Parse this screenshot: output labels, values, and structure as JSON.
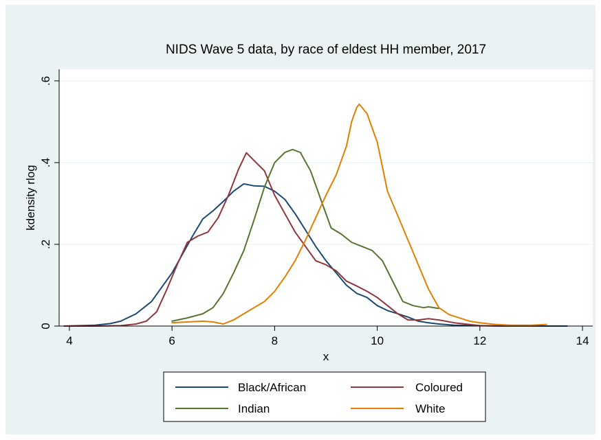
{
  "chart_data": {
    "type": "line",
    "title": "NIDS Wave 5 data, by race of eldest HH member, 2017",
    "xlabel": "x",
    "ylabel": "kdensity rlog",
    "xlim": [
      3.8,
      14.2
    ],
    "ylim": [
      0,
      0.6
    ],
    "xticks": [
      4,
      6,
      8,
      10,
      12,
      14
    ],
    "xtick_labels": [
      "4",
      "6",
      "8",
      "10",
      "12",
      "14"
    ],
    "yticks": [
      0,
      0.2,
      0.4,
      0.6
    ],
    "ytick_labels": [
      "0",
      ".2",
      ".4",
      ".6"
    ],
    "grid": true,
    "legend_position": "bottom",
    "series": [
      {
        "name": "Black/African",
        "color": "#1a476f",
        "x": [
          3.9,
          4.5,
          4.8,
          5.0,
          5.3,
          5.6,
          5.8,
          6.0,
          6.2,
          6.4,
          6.6,
          6.8,
          7.0,
          7.2,
          7.4,
          7.6,
          7.8,
          8.0,
          8.2,
          8.4,
          8.6,
          8.8,
          9.0,
          9.2,
          9.4,
          9.6,
          9.8,
          10.0,
          10.2,
          10.4,
          10.6,
          10.8,
          11.0,
          11.2,
          11.5,
          12.0,
          12.5,
          13.0,
          13.7
        ],
        "y": [
          0.0,
          0.002,
          0.006,
          0.012,
          0.03,
          0.06,
          0.095,
          0.13,
          0.175,
          0.22,
          0.262,
          0.282,
          0.305,
          0.33,
          0.348,
          0.343,
          0.342,
          0.33,
          0.31,
          0.275,
          0.235,
          0.195,
          0.16,
          0.13,
          0.1,
          0.08,
          0.07,
          0.05,
          0.038,
          0.03,
          0.022,
          0.012,
          0.008,
          0.005,
          0.002,
          0.001,
          0.0,
          0.0,
          0.0
        ]
      },
      {
        "name": "Coloured",
        "color": "#90353b",
        "x": [
          3.9,
          4.5,
          5.0,
          5.3,
          5.5,
          5.7,
          5.9,
          6.1,
          6.3,
          6.5,
          6.7,
          6.9,
          7.1,
          7.3,
          7.45,
          7.6,
          7.8,
          8.0,
          8.2,
          8.4,
          8.6,
          8.8,
          9.0,
          9.2,
          9.4,
          9.6,
          9.8,
          10.0,
          10.2,
          10.4,
          10.6,
          10.8,
          11.0,
          11.2,
          11.5,
          12.0,
          12.5,
          13.0
        ],
        "y": [
          0.0,
          0.0,
          0.001,
          0.005,
          0.012,
          0.035,
          0.09,
          0.15,
          0.205,
          0.22,
          0.23,
          0.265,
          0.32,
          0.385,
          0.424,
          0.405,
          0.38,
          0.32,
          0.275,
          0.23,
          0.195,
          0.16,
          0.15,
          0.135,
          0.11,
          0.098,
          0.085,
          0.07,
          0.05,
          0.03,
          0.015,
          0.015,
          0.018,
          0.015,
          0.008,
          0.001,
          0.0,
          0.0
        ]
      },
      {
        "name": "Indian",
        "color": "#55752f",
        "x": [
          6.0,
          6.3,
          6.6,
          6.8,
          7.0,
          7.2,
          7.4,
          7.6,
          7.8,
          8.0,
          8.2,
          8.35,
          8.5,
          8.7,
          8.9,
          9.1,
          9.3,
          9.5,
          9.7,
          9.9,
          10.1,
          10.3,
          10.5,
          10.7,
          10.9,
          11.0,
          11.2
        ],
        "y": [
          0.012,
          0.02,
          0.03,
          0.045,
          0.08,
          0.13,
          0.185,
          0.26,
          0.34,
          0.4,
          0.425,
          0.432,
          0.425,
          0.38,
          0.31,
          0.24,
          0.225,
          0.205,
          0.195,
          0.185,
          0.16,
          0.11,
          0.06,
          0.05,
          0.045,
          0.047,
          0.043
        ]
      },
      {
        "name": "White",
        "color": "#e37e00",
        "x": [
          6.0,
          6.3,
          6.6,
          6.8,
          7.0,
          7.2,
          7.4,
          7.6,
          7.8,
          8.0,
          8.2,
          8.4,
          8.6,
          8.8,
          9.0,
          9.2,
          9.4,
          9.5,
          9.6,
          9.65,
          9.8,
          10.0,
          10.2,
          10.4,
          10.6,
          10.8,
          11.0,
          11.2,
          11.4,
          11.6,
          11.8,
          12.0,
          12.3,
          12.6,
          13.0,
          13.3
        ],
        "y": [
          0.008,
          0.01,
          0.012,
          0.01,
          0.005,
          0.015,
          0.03,
          0.045,
          0.06,
          0.085,
          0.12,
          0.16,
          0.21,
          0.265,
          0.32,
          0.37,
          0.44,
          0.5,
          0.535,
          0.543,
          0.52,
          0.45,
          0.33,
          0.27,
          0.21,
          0.15,
          0.09,
          0.045,
          0.028,
          0.02,
          0.012,
          0.008,
          0.004,
          0.002,
          0.002,
          0.004
        ]
      }
    ]
  }
}
